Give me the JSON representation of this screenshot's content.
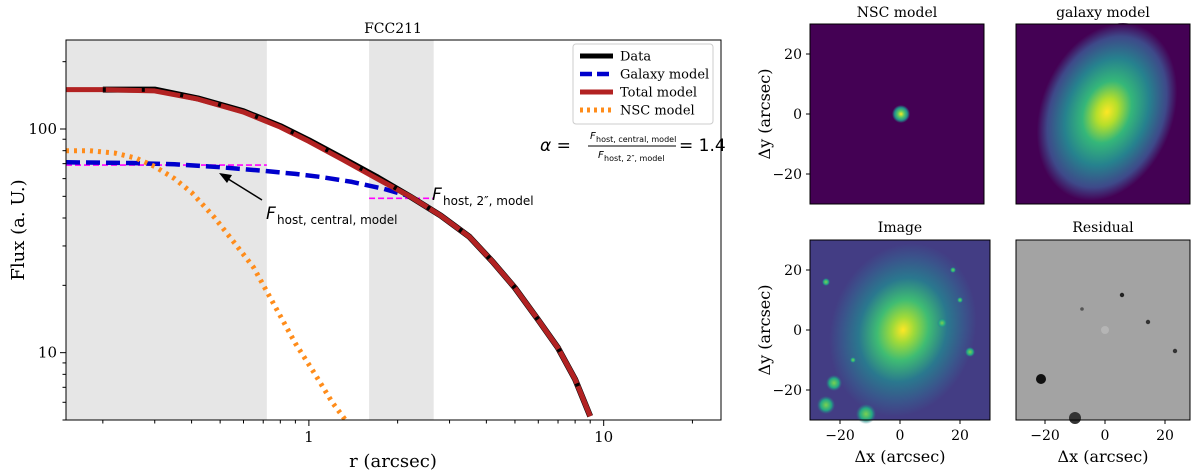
{
  "chart_data": [
    {
      "type": "line",
      "title": "FCC211",
      "xlabel": "r (arcsec)",
      "ylabel": "Flux (a. U.)",
      "xscale": "log",
      "yscale": "log",
      "xlim": [
        0.15,
        25
      ],
      "ylim": [
        5,
        250
      ],
      "x_ticks": [
        {
          "v": 1,
          "label": "1"
        },
        {
          "v": 10,
          "label": "10"
        }
      ],
      "y_ticks": [
        {
          "v": 10,
          "label": "10"
        },
        {
          "v": 100,
          "label": "100"
        }
      ],
      "shaded_regions": [
        [
          0.15,
          0.72
        ],
        [
          1.6,
          2.65
        ]
      ],
      "legend_position": "top-right",
      "series": [
        {
          "name": "Data",
          "color": "#000000",
          "style": "solid",
          "x": [
            0.2,
            0.3,
            0.42,
            0.6,
            0.8,
            1.0,
            1.3,
            1.7,
            2.2,
            2.8,
            3.5,
            4.2,
            5.0,
            6.0,
            7.0,
            8.0,
            9.0
          ],
          "y": [
            150,
            150,
            137,
            120,
            103,
            89,
            74,
            61,
            50,
            41,
            33,
            25.5,
            19.5,
            14,
            10.5,
            7.6,
            5.2
          ]
        },
        {
          "name": "Galaxy model",
          "color": "#0000cc",
          "style": "dashed",
          "x": [
            0.15,
            0.25,
            0.35,
            0.5,
            0.7,
            0.9,
            1.1,
            1.4,
            1.8,
            2.2,
            2.8,
            3.5,
            4.2,
            5.0,
            6.0,
            7.0,
            8.0,
            9.0
          ],
          "y": [
            71,
            70.5,
            69.5,
            67.5,
            65,
            63,
            61,
            58,
            54,
            50,
            41,
            33,
            25.5,
            19.5,
            14,
            10.5,
            7.6,
            5.2
          ]
        },
        {
          "name": "Total model",
          "color": "#b22222",
          "style": "solid",
          "x": [
            0.15,
            0.2,
            0.3,
            0.42,
            0.6,
            0.8,
            1.0,
            1.3,
            1.7,
            2.2,
            2.8,
            3.5,
            4.2,
            5.0,
            6.0,
            7.0,
            8.0,
            9.0
          ],
          "y": [
            150,
            150,
            148,
            136,
            119,
            102,
            88,
            73,
            60,
            50,
            41,
            33,
            25.5,
            19.5,
            14,
            10.5,
            7.6,
            5.2
          ]
        },
        {
          "name": "NSC model",
          "color": "#ff8c1a",
          "style": "dotted",
          "x": [
            0.15,
            0.18,
            0.22,
            0.26,
            0.3,
            0.35,
            0.4,
            0.48,
            0.57,
            0.65,
            0.75,
            0.9,
            1.05,
            1.2,
            1.33
          ],
          "y": [
            80,
            80,
            78,
            74,
            68,
            60,
            52,
            40,
            30,
            24,
            17,
            11,
            8,
            6,
            5
          ]
        }
      ],
      "reference_lines": [
        {
          "color": "#ff00ff",
          "style": "dashed",
          "x": [
            0.15,
            0.72
          ],
          "y": [
            69,
            69
          ]
        },
        {
          "color": "#ff00ff",
          "style": "dashed",
          "x": [
            1.6,
            2.65
          ],
          "y": [
            49,
            49
          ]
        }
      ],
      "annotations": {
        "central_base": "F",
        "central_sub": "host, central, model",
        "outer_base": "F",
        "outer_sub": "host, 2″, model",
        "alpha_prefix": "α =",
        "alpha_num": "F",
        "alpha_num_sub": "host, central, model",
        "alpha_den": "F",
        "alpha_den_sub": "host, 2″, model",
        "alpha_value": "= 1.4"
      }
    },
    {
      "type": "heatmap",
      "panels": [
        {
          "title": "NSC model",
          "colormap": "viridis"
        },
        {
          "title": "galaxy model",
          "colormap": "viridis"
        },
        {
          "title": "Image",
          "colormap": "viridis"
        },
        {
          "title": "Residual",
          "colormap": "gray"
        }
      ],
      "xlabel": "Δx (arcsec)",
      "ylabel": "Δy (arcsec)",
      "xlim": [
        -30,
        30
      ],
      "ylim": [
        -30,
        30
      ],
      "x_ticks": [
        "−20",
        "0",
        "20"
      ],
      "y_ticks": [
        "20",
        "0",
        "−20"
      ]
    }
  ],
  "colors": {
    "shade": "#e6e6e6",
    "viridis_bg": "#440154",
    "viridis_mid": "#21918c",
    "viridis_hi": "#fde725",
    "residual_bg": "#a0a0a0"
  }
}
